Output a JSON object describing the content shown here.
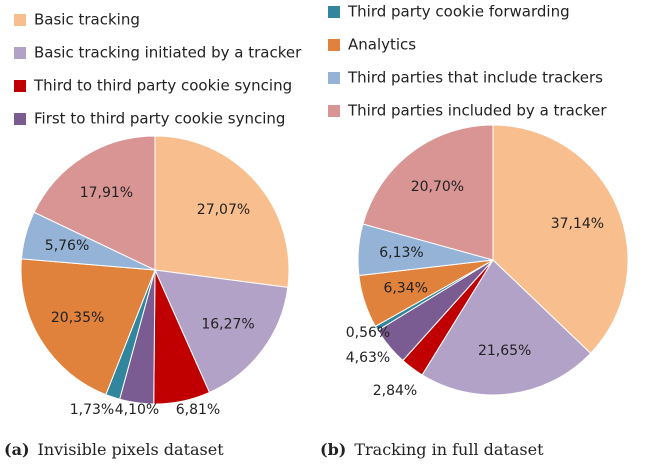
{
  "chart_data": [
    {
      "type": "pie",
      "categories": [
        "Basic tracking",
        "Basic tracking initiated by a tracker",
        "Third to third party cookie syncing",
        "First to third party cookie syncing",
        "Third party cookie forwarding",
        "Analytics",
        "Third parties that include trackers",
        "Third parties included by a tracker"
      ],
      "colors": [
        "#f9be8e",
        "#b3a2c7",
        "#c00000",
        "#7a5c93",
        "#31859c",
        "#e0823c",
        "#95b3d7",
        "#d99594"
      ],
      "values": [
        27.07,
        16.27,
        6.81,
        4.1,
        1.73,
        20.35,
        5.76,
        17.91
      ],
      "value_labels": [
        "27,07%",
        "16,27%",
        "6,81%",
        "4,10%",
        "1,73%",
        "20,35%",
        "5,76%",
        "17,91%"
      ],
      "caption_label": "(a)",
      "caption": "Invisible pixels dataset"
    },
    {
      "type": "pie",
      "categories": [
        "Basic tracking",
        "Basic tracking initiated by a tracker",
        "Third to third party cookie syncing",
        "First to third party cookie syncing",
        "Third party cookie forwarding",
        "Analytics",
        "Third parties that include trackers",
        "Third parties included by a tracker"
      ],
      "colors": [
        "#f9be8e",
        "#b3a2c7",
        "#c00000",
        "#7a5c93",
        "#31859c",
        "#e0823c",
        "#95b3d7",
        "#d99594"
      ],
      "values": [
        37.14,
        21.65,
        2.84,
        4.63,
        0.56,
        6.34,
        6.13,
        20.7
      ],
      "value_labels": [
        "37,14%",
        "21,65%",
        "2,84%",
        "4,63%",
        "0,56%",
        "6,34%",
        "6,13%",
        "20,70%"
      ],
      "caption_label": "(b)",
      "caption": "Tracking in full dataset"
    }
  ]
}
